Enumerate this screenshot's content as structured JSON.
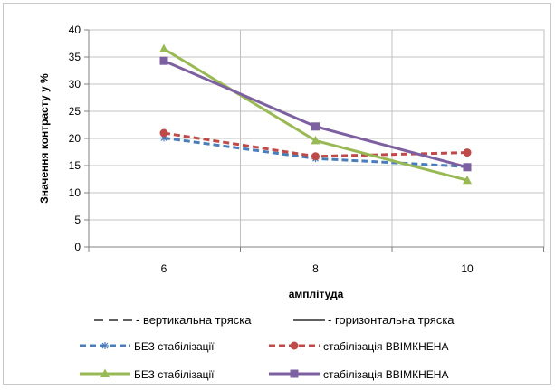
{
  "chart_data": {
    "type": "line",
    "x": [
      6,
      8,
      10
    ],
    "xlabel": "амплітуда",
    "ylabel": "Значення контрасту у %",
    "ylim": [
      0,
      40
    ],
    "yticks": [
      0,
      5,
      10,
      15,
      20,
      25,
      30,
      35,
      40
    ],
    "grid": true,
    "legend_placement": "bottom",
    "line_style_legend": [
      {
        "style": "dashed",
        "label": "- вертикальна тряска"
      },
      {
        "style": "solid",
        "label": "- горизонтальна тряска"
      }
    ],
    "series": [
      {
        "name": "БЕЗ стабілізації",
        "values": [
          20.1,
          16.3,
          14.8
        ],
        "color": "#4a7ebb",
        "dash": true,
        "marker": "star"
      },
      {
        "name": "стабілізація ВВІМКНЕНА",
        "values": [
          21.0,
          16.7,
          17.4
        ],
        "color": "#be4b48",
        "dash": true,
        "marker": "circle"
      },
      {
        "name": "БЕЗ стабілізації",
        "values": [
          36.5,
          19.6,
          12.3
        ],
        "color": "#98b954",
        "dash": false,
        "marker": "triangle"
      },
      {
        "name": "стабілізація ВВІМКНЕНА",
        "values": [
          34.3,
          22.2,
          14.7
        ],
        "color": "#7d60a0",
        "dash": false,
        "marker": "square"
      }
    ]
  }
}
